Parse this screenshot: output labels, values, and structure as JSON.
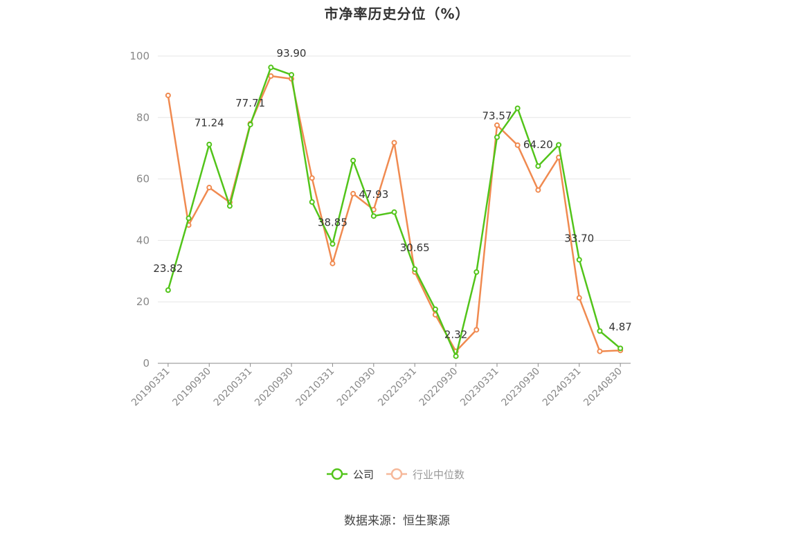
{
  "chart_data": {
    "type": "line",
    "title": "市净率历史分位（%）",
    "source_text": "数据来源：恒生聚源",
    "xlabel": "",
    "ylabel": "",
    "ylim": [
      0,
      100
    ],
    "y_ticks": [
      0,
      20,
      40,
      60,
      80,
      100
    ],
    "grid": true,
    "legend_position": "bottom",
    "x": [
      "20190331",
      "20190630",
      "20190930",
      "20191231",
      "20200331",
      "20200630",
      "20200930",
      "20201231",
      "20210331",
      "20210630",
      "20210930",
      "20211231",
      "20220331",
      "20220630",
      "20220930",
      "20221230",
      "20230331",
      "20230630",
      "20230930",
      "20231229",
      "20240331",
      "20240630",
      "20240830"
    ],
    "x_tick_labels": [
      "20190331",
      "20190930",
      "20200331",
      "20200930",
      "20210331",
      "20210930",
      "20220331",
      "20220930",
      "20230331",
      "20230930",
      "20240331",
      "20240830"
    ],
    "series": [
      {
        "name": "公司",
        "color": "#52c41a",
        "values": [
          23.82,
          47.2,
          71.24,
          51.2,
          77.71,
          96.3,
          93.9,
          52.5,
          38.85,
          66.0,
          47.93,
          49.2,
          30.65,
          17.6,
          2.32,
          29.7,
          73.57,
          83.0,
          64.2,
          71.1,
          33.7,
          10.5,
          4.87
        ],
        "labels": {
          "0": "23.82",
          "2": "71.24",
          "4": "77.71",
          "6": "93.90",
          "8": "38.85",
          "10": "47.93",
          "12": "30.65",
          "14": "2.32",
          "16": "73.57",
          "18": "64.20",
          "20": "33.70",
          "22": "4.87"
        }
      },
      {
        "name": "行业中位数",
        "color": "#f08a50",
        "values": [
          87.2,
          45.0,
          57.2,
          52.4,
          78.0,
          93.5,
          92.6,
          60.3,
          32.5,
          55.2,
          50.0,
          71.8,
          29.7,
          15.8,
          3.9,
          10.9,
          77.5,
          71.0,
          56.4,
          67.0,
          21.3,
          3.9,
          4.2
        ]
      }
    ]
  }
}
